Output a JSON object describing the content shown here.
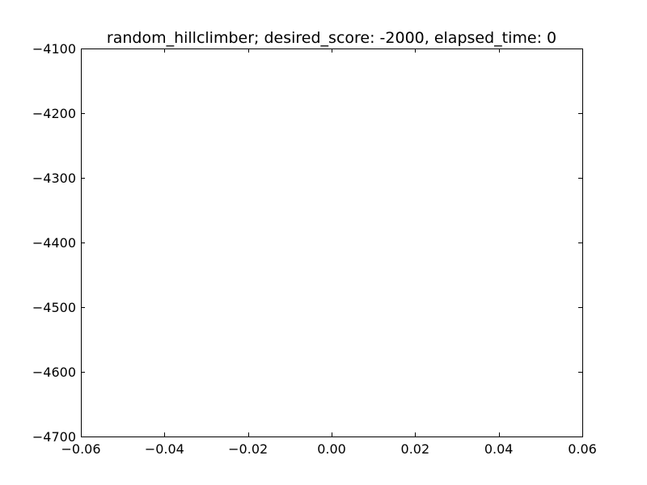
{
  "chart_data": {
    "type": "line",
    "title": "random_hillclimber; desired_score: -2000, elapsed_time: 0",
    "xlabel": "",
    "ylabel": "",
    "xlim": [
      -0.06,
      0.06
    ],
    "ylim": [
      -4700,
      -4100
    ],
    "x_ticks": [
      -0.06,
      -0.04,
      -0.02,
      0.0,
      0.02,
      0.04,
      0.06
    ],
    "x_tick_labels": [
      "−0.06",
      "−0.04",
      "−0.02",
      "0.00",
      "0.02",
      "0.04",
      "0.06"
    ],
    "y_ticks": [
      -4100,
      -4200,
      -4300,
      -4400,
      -4500,
      -4600,
      -4700
    ],
    "y_tick_labels": [
      "−4100",
      "−4200",
      "−4300",
      "−4400",
      "−4500",
      "−4600",
      "−4700"
    ],
    "series": [],
    "grid": false,
    "frame_color": "#000000",
    "background_color": "#ffffff"
  }
}
